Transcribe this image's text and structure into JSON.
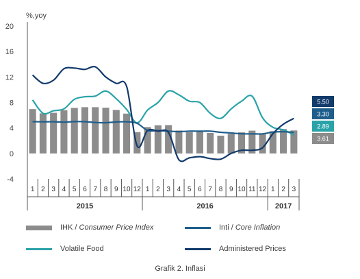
{
  "chart_data": {
    "type": "bar",
    "unit_label": "%,yoy",
    "ylim": [
      -4,
      20
    ],
    "y_ticks": [
      "20",
      "16",
      "12",
      "8",
      "4",
      "0",
      "-4"
    ],
    "months": [
      "1",
      "2",
      "3",
      "4",
      "5",
      "6",
      "7",
      "8",
      "9",
      "10",
      "12",
      "1",
      "2",
      "3",
      "4",
      "5",
      "6",
      "7",
      "8",
      "9",
      "10",
      "11",
      "12",
      "1",
      "2",
      "3"
    ],
    "years": [
      {
        "label": "2015",
        "start": 0,
        "end": 10
      },
      {
        "label": "2016",
        "start": 11,
        "end": 22
      },
      {
        "label": "2017",
        "start": 23,
        "end": 25
      }
    ],
    "series": [
      {
        "name": "IHK / Consumer Price Index",
        "kind": "bar",
        "color": "#8c8c8c",
        "values": [
          6.96,
          6.29,
          6.38,
          6.79,
          7.15,
          7.26,
          7.26,
          7.18,
          6.83,
          6.25,
          3.35,
          4.14,
          4.42,
          4.45,
          3.6,
          3.33,
          3.45,
          3.21,
          2.79,
          3.07,
          3.31,
          3.58,
          3.02,
          3.49,
          3.83,
          3.61
        ]
      },
      {
        "name": "Inti / Core Inflation",
        "kind": "line",
        "color": "#1f5e8c",
        "values": [
          4.99,
          4.96,
          4.98,
          4.91,
          5.0,
          4.99,
          4.86,
          4.82,
          4.94,
          4.97,
          4.73,
          3.62,
          3.59,
          3.5,
          3.41,
          3.5,
          3.49,
          3.49,
          3.32,
          3.21,
          3.08,
          3.07,
          3.07,
          3.35,
          3.41,
          3.3
        ]
      },
      {
        "name": "Volatile Food",
        "kind": "line",
        "color": "#2aa3a8",
        "values": [
          8.4,
          6.3,
          6.7,
          7.0,
          8.5,
          8.9,
          9.0,
          9.8,
          8.6,
          6.9,
          4.8,
          6.8,
          8.0,
          9.8,
          9.2,
          8.2,
          8.0,
          6.3,
          5.5,
          7.0,
          8.2,
          9.0,
          5.6,
          4.1,
          3.7,
          2.89
        ]
      },
      {
        "name": "Administered Prices",
        "kind": "line",
        "color": "#123a6b",
        "values": [
          12.3,
          11.0,
          11.5,
          13.3,
          13.4,
          13.2,
          13.6,
          12.0,
          11.0,
          10.5,
          1.2,
          3.6,
          3.5,
          3.3,
          -1.0,
          -0.7,
          -0.5,
          -0.8,
          -0.9,
          0.0,
          0.5,
          0.5,
          0.9,
          3.1,
          4.6,
          5.5
        ]
      }
    ],
    "end_labels": [
      {
        "value": "5.50",
        "color": "#123a6b"
      },
      {
        "value": "3.30",
        "color": "#1f5e8c"
      },
      {
        "value": "2.89",
        "color": "#2aa3a8"
      },
      {
        "value": "3.61",
        "color": "#8c8c8c"
      }
    ],
    "legend": [
      {
        "name": "IHK / ",
        "italic": "Consumer Price Index",
        "color": "#8c8c8c",
        "kind": "bar"
      },
      {
        "name": "Inti / ",
        "italic": "Core Inflation",
        "color": "#1f5e8c",
        "kind": "line"
      },
      {
        "name": "Volatile Food",
        "italic": "",
        "color": "#2aa3a8",
        "kind": "line"
      },
      {
        "name": "Administered Prices",
        "italic": "",
        "color": "#123a6b",
        "kind": "line"
      }
    ],
    "caption": "Grafik 2. Inflasi"
  }
}
